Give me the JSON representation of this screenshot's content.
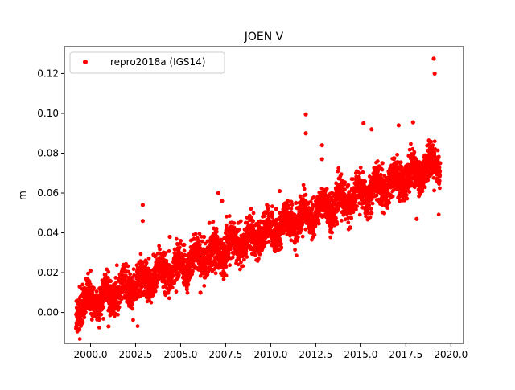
{
  "chart_data": {
    "type": "scatter",
    "title": "JOEN V",
    "xlabel": "",
    "ylabel": "m",
    "xlim": [
      1998.55,
      2020.7
    ],
    "ylim": [
      -0.0155,
      0.1335
    ],
    "xticks": [
      {
        "value": 2000.0,
        "label": "2000.0"
      },
      {
        "value": 2002.5,
        "label": "2002.5"
      },
      {
        "value": 2005.0,
        "label": "2005.0"
      },
      {
        "value": 2007.5,
        "label": "2007.5"
      },
      {
        "value": 2010.0,
        "label": "2010.0"
      },
      {
        "value": 2012.5,
        "label": "2012.5"
      },
      {
        "value": 2015.0,
        "label": "2015.0"
      },
      {
        "value": 2017.5,
        "label": "2017.5"
      },
      {
        "value": 2020.0,
        "label": "2020.0"
      }
    ],
    "yticks": [
      {
        "value": 0.0,
        "label": "0.00"
      },
      {
        "value": 0.02,
        "label": "0.02"
      },
      {
        "value": 0.04,
        "label": "0.04"
      },
      {
        "value": 0.06,
        "label": "0.06"
      },
      {
        "value": 0.08,
        "label": "0.08"
      },
      {
        "value": 0.1,
        "label": "0.10"
      },
      {
        "value": 0.12,
        "label": "0.12"
      }
    ],
    "grid": false,
    "legend_position": "upper-left",
    "series": [
      {
        "name": "repro2018a (IGS14)",
        "color": "#ff0000",
        "marker": "circle",
        "x_range": [
          1999.2,
          2019.4
        ],
        "trend": {
          "start_value": 0.002,
          "end_value": 0.075
        },
        "points": [
          [
            1999.2,
            -0.008
          ],
          [
            1999.3,
            0.006
          ],
          [
            1999.4,
            0.013
          ],
          [
            1999.6,
            0.004
          ],
          [
            1999.8,
            0.016
          ],
          [
            2000.0,
            0.021
          ],
          [
            2000.2,
            0.005
          ],
          [
            2000.5,
            0.012
          ],
          [
            2000.8,
            0.017
          ],
          [
            2001.0,
            -0.007
          ],
          [
            2001.3,
            0.014
          ],
          [
            2001.6,
            0.009
          ],
          [
            2001.9,
            0.021
          ],
          [
            2002.2,
            0.016
          ],
          [
            2002.5,
            0.012
          ],
          [
            2002.7,
            0.025
          ],
          [
            2002.9,
            0.046
          ],
          [
            2002.9,
            0.054
          ],
          [
            2003.2,
            0.022
          ],
          [
            2003.5,
            0.029
          ],
          [
            2003.8,
            0.017
          ],
          [
            2004.1,
            0.029
          ],
          [
            2004.4,
            0.038
          ],
          [
            2004.6,
            0.015
          ],
          [
            2004.9,
            0.025
          ],
          [
            2005.2,
            0.034
          ],
          [
            2005.5,
            0.028
          ],
          [
            2005.8,
            0.03
          ],
          [
            2006.1,
            0.01
          ],
          [
            2006.3,
            0.038
          ],
          [
            2006.6,
            0.045
          ],
          [
            2006.9,
            0.037
          ],
          [
            2007.1,
            0.06
          ],
          [
            2007.3,
            0.056
          ],
          [
            2007.6,
            0.037
          ],
          [
            2007.9,
            0.03
          ],
          [
            2008.2,
            0.045
          ],
          [
            2008.5,
            0.039
          ],
          [
            2008.8,
            0.041
          ],
          [
            2009.1,
            0.036
          ],
          [
            2009.4,
            0.045
          ],
          [
            2009.7,
            0.05
          ],
          [
            2010.0,
            0.041
          ],
          [
            2010.3,
            0.052
          ],
          [
            2010.5,
            0.061
          ],
          [
            2010.8,
            0.044
          ],
          [
            2011.1,
            0.048
          ],
          [
            2011.4,
            0.055
          ],
          [
            2011.7,
            0.052
          ],
          [
            2011.95,
            0.0995
          ],
          [
            2011.95,
            0.09
          ],
          [
            2012.3,
            0.052
          ],
          [
            2012.6,
            0.058
          ],
          [
            2012.85,
            0.077
          ],
          [
            2012.85,
            0.084
          ],
          [
            2013.1,
            0.055
          ],
          [
            2013.4,
            0.06
          ],
          [
            2013.7,
            0.053
          ],
          [
            2014.0,
            0.058
          ],
          [
            2014.3,
            0.064
          ],
          [
            2014.6,
            0.062
          ],
          [
            2014.9,
            0.068
          ],
          [
            2015.15,
            0.095
          ],
          [
            2015.3,
            0.058
          ],
          [
            2015.6,
            0.092
          ],
          [
            2015.9,
            0.064
          ],
          [
            2016.2,
            0.075
          ],
          [
            2016.5,
            0.061
          ],
          [
            2016.8,
            0.068
          ],
          [
            2017.1,
            0.094
          ],
          [
            2017.4,
            0.069
          ],
          [
            2017.7,
            0.07
          ],
          [
            2017.9,
            0.0955
          ],
          [
            2018.1,
            0.047
          ],
          [
            2018.3,
            0.072
          ],
          [
            2018.6,
            0.076
          ],
          [
            2018.9,
            0.082
          ],
          [
            2019.05,
            0.1275
          ],
          [
            2019.1,
            0.12
          ],
          [
            2019.2,
            0.071
          ],
          [
            2019.3,
            0.078
          ],
          [
            2019.4,
            0.075
          ]
        ]
      }
    ]
  }
}
